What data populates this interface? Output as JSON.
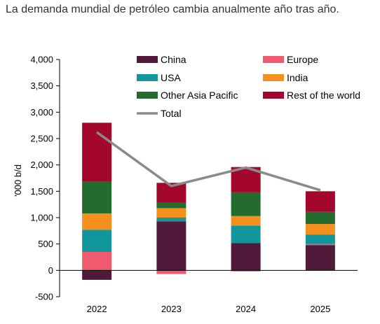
{
  "title": "La demanda mundial de petróleo cambia anualmente año tras año.",
  "chart_data": {
    "type": "bar",
    "stacked": true,
    "categories": [
      "2022",
      "2023",
      "2024",
      "2025"
    ],
    "ylabel": "'000 b/d",
    "ylim": [
      -500,
      4000
    ],
    "yticks": [
      "-500",
      "0",
      "500",
      "1,000",
      "1,500",
      "2,000",
      "2,500",
      "3,000",
      "3,500",
      "4,000"
    ],
    "ytick_values": [
      -500,
      0,
      500,
      1000,
      1500,
      2000,
      2500,
      3000,
      3500,
      4000
    ],
    "grid": false,
    "legend_position": "top",
    "series": [
      {
        "name": "China",
        "color": "#521a3a",
        "values": [
          -180,
          930,
          520,
          480
        ]
      },
      {
        "name": "Europe",
        "color": "#f05a6e",
        "values": [
          350,
          -70,
          -20,
          20
        ]
      },
      {
        "name": "USA",
        "color": "#11979b",
        "values": [
          420,
          70,
          330,
          180
        ]
      },
      {
        "name": "India",
        "color": "#f5901e",
        "values": [
          310,
          180,
          180,
          200
        ]
      },
      {
        "name": "Other Asia Pacific",
        "color": "#236c2d",
        "values": [
          610,
          100,
          450,
          230
        ]
      },
      {
        "name": "Rest of the world",
        "color": "#a3072b",
        "values": [
          1110,
          380,
          480,
          390
        ]
      }
    ],
    "line": {
      "name": "Total",
      "color": "#8a8a8a",
      "values": [
        2620,
        1600,
        1950,
        1520
      ]
    }
  }
}
